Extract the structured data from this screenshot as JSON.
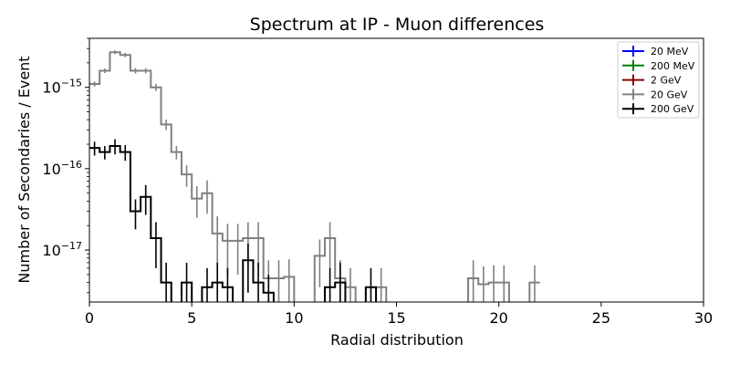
{
  "chart_data": {
    "type": "line",
    "drawstyle": "step-histogram-with-errorbars",
    "title": "Spectrum at IP - Muon differences",
    "xlabel": "Radial distribution",
    "ylabel": "Number of Secondaries / Event",
    "xlim": [
      0,
      30
    ],
    "ylim": [
      2.3e-18,
      4e-15
    ],
    "yscale": "log",
    "bin_width": 0.5,
    "xticks": [
      0,
      5,
      10,
      15,
      20,
      25,
      30
    ],
    "yticks": [
      {
        "value": 1e-17,
        "base": "10",
        "exp": "−17"
      },
      {
        "value": 1e-16,
        "base": "10",
        "exp": "−16"
      },
      {
        "value": 1e-15,
        "base": "10",
        "exp": "−15"
      }
    ],
    "grid": false,
    "legend": {
      "position": "top-right",
      "entries": [
        {
          "label": "20 MeV",
          "color": "#0000ff"
        },
        {
          "label": "200 MeV",
          "color": "#008000"
        },
        {
          "label": "2 GeV",
          "color": "#8b0000"
        },
        {
          "label": "20 GeV",
          "color": "#808080"
        },
        {
          "label": "200 GeV",
          "color": "#000000"
        }
      ]
    },
    "series": [
      {
        "name": "20 GeV",
        "color": "#808080",
        "x": [
          0.25,
          0.75,
          1.25,
          1.75,
          2.25,
          2.75,
          3.25,
          3.75,
          4.25,
          4.75,
          5.25,
          5.75,
          6.25,
          6.75,
          7.25,
          7.75,
          8.25,
          8.75,
          9.25,
          9.75,
          10.25,
          10.75,
          11.25,
          11.75,
          12.25,
          12.75,
          13.25,
          13.75,
          14.25,
          14.75,
          15.25,
          15.75,
          16.25,
          16.75,
          17.25,
          17.75,
          18.25,
          18.75,
          19.25,
          19.75,
          20.25,
          20.75,
          21.25,
          21.75
        ],
        "y": [
          1.1e-15,
          1.6e-15,
          2.7e-15,
          2.5e-15,
          1.6e-15,
          1.6e-15,
          1e-15,
          3.5e-16,
          1.6e-16,
          8.5e-17,
          4.3e-17,
          5e-17,
          1.6e-17,
          1.3e-17,
          1.3e-17,
          1.4e-17,
          1.4e-17,
          4.5e-18,
          4.5e-18,
          4.7e-18,
          0,
          0,
          8.5e-18,
          1.4e-17,
          4.5e-18,
          3.5e-18,
          0,
          0,
          3.5e-18,
          0,
          0,
          0,
          0,
          0,
          0,
          0,
          0,
          4.5e-18,
          3.8e-18,
          4e-18,
          4e-18,
          0,
          0,
          4e-18
        ],
        "err": [
          8e-17,
          1e-16,
          1.5e-16,
          1.5e-16,
          1.2e-16,
          1.2e-16,
          1e-16,
          5e-17,
          3e-17,
          2.5e-17,
          1.8e-17,
          2.2e-17,
          1e-17,
          8e-18,
          8e-18,
          8e-18,
          8e-18,
          3e-18,
          3e-18,
          3e-18,
          0,
          0,
          5e-18,
          8e-18,
          3e-18,
          2.5e-18,
          0,
          0,
          2.5e-18,
          0,
          0,
          0,
          0,
          0,
          0,
          0,
          0,
          3e-18,
          2.5e-18,
          2.5e-18,
          2.5e-18,
          0,
          0,
          2.5e-18
        ]
      },
      {
        "name": "200 GeV",
        "color": "#000000",
        "x": [
          0.25,
          0.75,
          1.25,
          1.75,
          2.25,
          2.75,
          3.25,
          3.75,
          4.25,
          4.75,
          5.25,
          5.75,
          6.25,
          6.75,
          7.25,
          7.75,
          8.25,
          8.75,
          9.25,
          9.75,
          10.25,
          10.75,
          11.25,
          11.75,
          12.25,
          12.75,
          13.25,
          13.75,
          14.25
        ],
        "y": [
          1.8e-16,
          1.6e-16,
          1.9e-16,
          1.6e-16,
          3e-17,
          4.5e-17,
          1.4e-17,
          4e-18,
          0,
          4e-18,
          0,
          3.5e-18,
          4e-18,
          3.5e-18,
          0,
          7.5e-18,
          4e-18,
          3e-18,
          0,
          0,
          0,
          0,
          0,
          3.5e-18,
          4e-18,
          0,
          0,
          3.5e-18,
          0
        ],
        "err": [
          3.5e-17,
          3e-17,
          4e-17,
          3.5e-17,
          1.2e-17,
          1.8e-17,
          8e-18,
          3e-18,
          0,
          3e-18,
          0,
          2.5e-18,
          3e-18,
          2.5e-18,
          0,
          4.5e-18,
          3e-18,
          2e-18,
          0,
          0,
          0,
          0,
          0,
          2.5e-18,
          3e-18,
          0,
          0,
          2.5e-18,
          0
        ]
      }
    ]
  }
}
